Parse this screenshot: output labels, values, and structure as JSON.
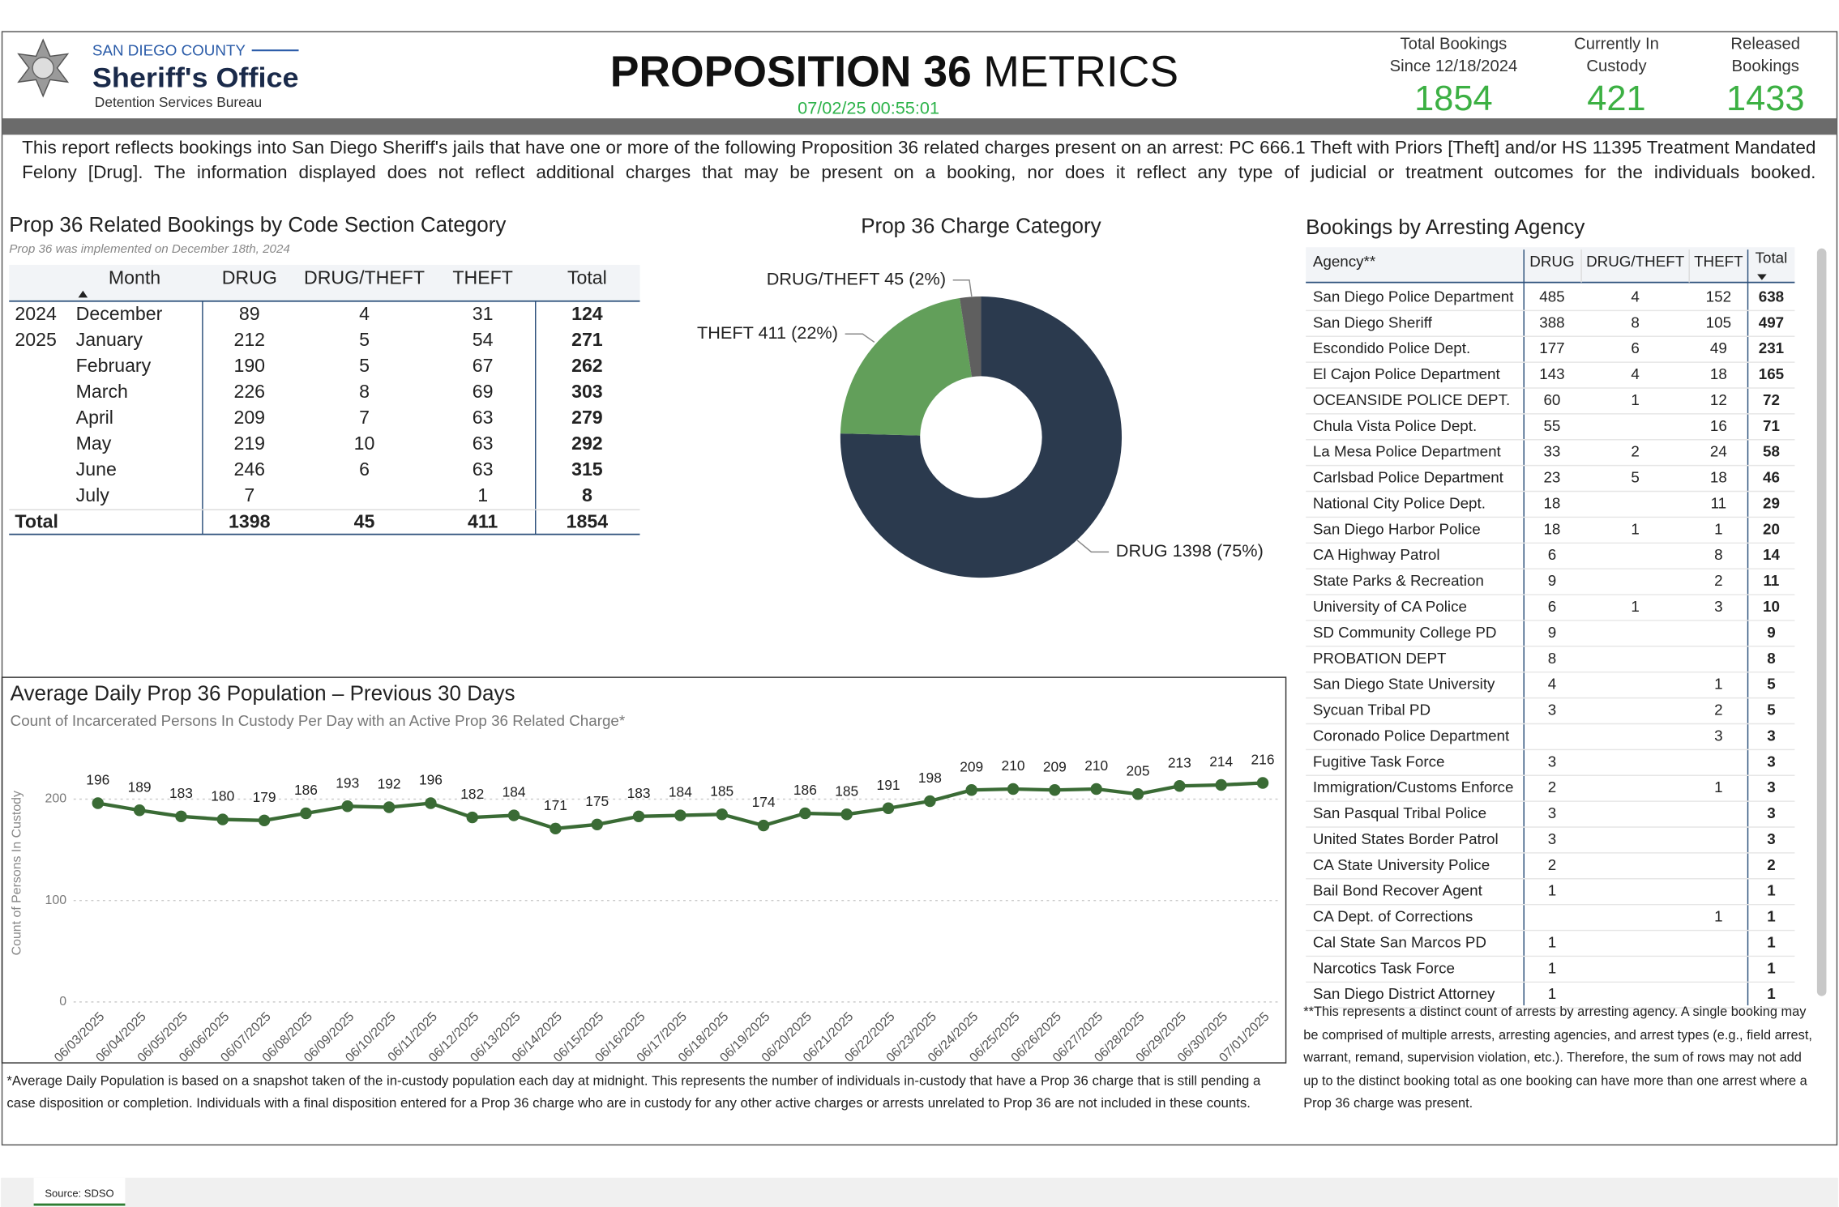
{
  "header": {
    "org_top": "SAN DIEGO COUNTY",
    "org_name": "Sheriff's Office",
    "org_sub": "Detention Services Bureau",
    "title_bold": "PROPOSITION 36",
    "title_rest": "METRICS",
    "timestamp": "07/02/25 00:55:01"
  },
  "kpis": [
    {
      "label": [
        "Total Bookings",
        "Since 12/18/2024"
      ],
      "value": 1854
    },
    {
      "label": [
        "Currently In",
        "Custody"
      ],
      "value": 421
    },
    {
      "label": [
        "Released",
        "Bookings"
      ],
      "value": 1433
    }
  ],
  "description": "This report reflects bookings into San Diego Sheriff's jails that have one or more of the following Proposition 36 related charges present on an arrest: PC 666.1 Theft with Priors [Theft] and/or HS 11395 Treatment Mandated Felony [Drug]. The information displayed does not reflect additional charges that may be present on a booking, nor does it reflect any type of judicial or treatment outcomes for the individuals booked.",
  "month_table": {
    "title": "Prop 36 Related Bookings by Code Section Category",
    "subtitle": "Prop 36 was implemented on December 18th, 2024",
    "columns": [
      "Month",
      "DRUG",
      "DRUG/THEFT",
      "THEFT",
      "Total"
    ],
    "rows": [
      [
        "2024",
        "December",
        89,
        4,
        31,
        124
      ],
      [
        "2025",
        "January",
        212,
        5,
        54,
        271
      ],
      [
        null,
        "February",
        190,
        5,
        67,
        262
      ],
      [
        null,
        "March",
        226,
        8,
        69,
        303
      ],
      [
        null,
        "April",
        209,
        7,
        63,
        279
      ],
      [
        null,
        "May",
        219,
        10,
        63,
        292
      ],
      [
        null,
        "June",
        246,
        6,
        63,
        315
      ],
      [
        null,
        "July",
        7,
        null,
        1,
        8
      ]
    ],
    "total_row": [
      "Total",
      1398,
      45,
      411,
      1854
    ]
  },
  "agency_table": {
    "title": "Bookings by Arresting Agency",
    "columns": [
      "Agency**",
      "DRUG",
      "DRUG/THEFT",
      "THEFT",
      "Total"
    ],
    "rows": [
      [
        "San Diego Police Department",
        485,
        4,
        152,
        638
      ],
      [
        "San Diego Sheriff",
        388,
        8,
        105,
        497
      ],
      [
        "Escondido Police Dept.",
        177,
        6,
        49,
        231
      ],
      [
        "El Cajon Police Department",
        143,
        4,
        18,
        165
      ],
      [
        "OCEANSIDE POLICE DEPT.",
        60,
        1,
        12,
        72
      ],
      [
        "Chula Vista Police Dept.",
        55,
        null,
        16,
        71
      ],
      [
        "La Mesa Police Department",
        33,
        2,
        24,
        58
      ],
      [
        "Carlsbad Police Department",
        23,
        5,
        18,
        46
      ],
      [
        "National City Police Dept.",
        18,
        null,
        11,
        29
      ],
      [
        "San Diego Harbor Police",
        18,
        1,
        1,
        20
      ],
      [
        "CA Highway Patrol",
        6,
        null,
        8,
        14
      ],
      [
        "State Parks & Recreation",
        9,
        null,
        2,
        11
      ],
      [
        "University of CA Police",
        6,
        1,
        3,
        10
      ],
      [
        "SD Community College PD",
        9,
        null,
        null,
        9
      ],
      [
        "PROBATION DEPT",
        8,
        null,
        null,
        8
      ],
      [
        "San Diego State University",
        4,
        null,
        1,
        5
      ],
      [
        "Sycuan Tribal PD",
        3,
        null,
        2,
        5
      ],
      [
        "Coronado Police Department",
        null,
        null,
        3,
        3
      ],
      [
        "Fugitive Task Force",
        3,
        null,
        null,
        3
      ],
      [
        "Immigration/Customs Enforce",
        2,
        null,
        1,
        3
      ],
      [
        "San Pasqual Tribal Police",
        3,
        null,
        null,
        3
      ],
      [
        "United States Border Patrol",
        3,
        null,
        null,
        3
      ],
      [
        "CA State University Police",
        2,
        null,
        null,
        2
      ],
      [
        "Bail Bond Recover Agent",
        1,
        null,
        null,
        1
      ],
      [
        "CA Dept. of Corrections",
        null,
        null,
        1,
        1
      ],
      [
        "Cal State San Marcos PD",
        1,
        null,
        null,
        1
      ],
      [
        "Narcotics Task Force",
        1,
        null,
        null,
        1
      ],
      [
        "San Diego District Attorney",
        1,
        null,
        null,
        1
      ]
    ],
    "footnote": "**This represents a distinct count of arrests by arresting agency. A single booking may be comprised of multiple arrests, arresting agencies, and arrest types (e.g., field arrest, warrant, remand, supervision violation, etc.). Therefore, the sum of rows may not add up to the distinct booking total as one booking can have more than one arrest where a Prop 36 charge was present."
  },
  "chart_data": [
    {
      "type": "donut",
      "title": "Prop 36 Charge Category",
      "categories": [
        "DRUG",
        "THEFT",
        "DRUG/THEFT"
      ],
      "values": [
        1398,
        411,
        45
      ],
      "value_labels": [
        "DRUG 1398 (75%)",
        "THEFT 411 (22%)",
        "DRUG/THEFT 45 (2%)"
      ],
      "colors": [
        "#2b3a4e",
        "#629f5a",
        "#5f5f5f"
      ]
    },
    {
      "type": "line",
      "title": "Average Daily Prop 36 Population – Previous 30 Days",
      "subtitle": "Count of Incarcerated Persons In Custody Per Day with an Active Prop 36 Related Charge*",
      "y_label": "Count of Persons In Custody",
      "categories": [
        "06/03/2025",
        "06/04/2025",
        "06/05/2025",
        "06/06/2025",
        "06/07/2025",
        "06/08/2025",
        "06/09/2025",
        "06/10/2025",
        "06/11/2025",
        "06/12/2025",
        "06/13/2025",
        "06/14/2025",
        "06/15/2025",
        "06/16/2025",
        "06/17/2025",
        "06/18/2025",
        "06/19/2025",
        "06/20/2025",
        "06/21/2025",
        "06/22/2025",
        "06/23/2025",
        "06/24/2025",
        "06/25/2025",
        "06/26/2025",
        "06/27/2025",
        "06/28/2025",
        "06/29/2025",
        "06/30/2025",
        "07/01/2025"
      ],
      "values": [
        196,
        189,
        183,
        180,
        179,
        186,
        193,
        192,
        196,
        182,
        184,
        171,
        175,
        183,
        184,
        185,
        174,
        186,
        185,
        191,
        198,
        209,
        210,
        209,
        210,
        205,
        213,
        214,
        216
      ],
      "color": "#3a6b35",
      "ylim": [
        0,
        230
      ],
      "yticks": [
        0,
        100,
        200
      ],
      "grid": true,
      "footnote": "*Average Daily Population is based on a snapshot taken of the in-custody population each day at midnight. This represents the number of individuals in-custody that have a Prop 36 charge that is still pending a case disposition or completion. Individuals with a final disposition entered for a Prop 36 charge who are in custody for any other active charges or arrests unrelated to Prop 36 are not included in these counts."
    }
  ],
  "footer": {
    "tab": "Source: SDSO"
  }
}
